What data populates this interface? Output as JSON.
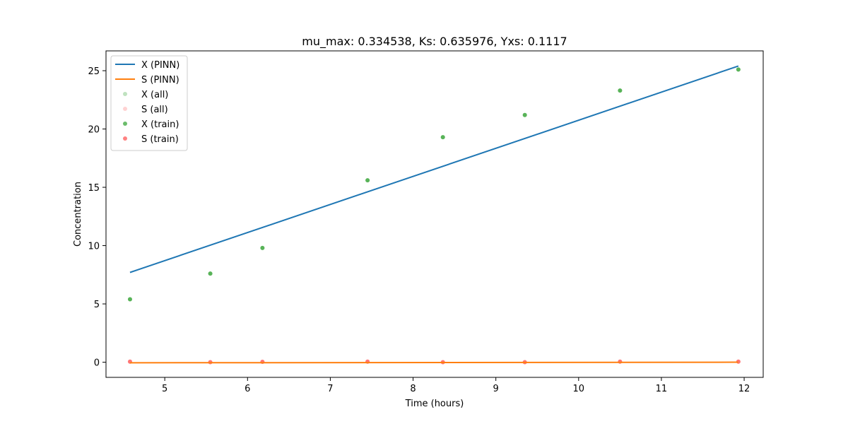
{
  "chart_data": {
    "type": "line",
    "title": "mu_max: 0.334538, Ks: 0.635976, Yxs: 0.1117",
    "xlabel": "Time (hours)",
    "ylabel": "Concentration",
    "xlim": [
      4.29,
      12.23
    ],
    "ylim": [
      -1.3,
      26.7
    ],
    "xticks": [
      "5",
      "6",
      "7",
      "8",
      "9",
      "10",
      "11",
      "12"
    ],
    "yticks": [
      "0",
      "5",
      "10",
      "15",
      "20",
      "25"
    ],
    "grid": false,
    "legend_position": "top-left",
    "series": [
      {
        "name": "X (PINN)",
        "kind": "line",
        "color": "#1f77b4",
        "x": [
          4.58,
          11.93
        ],
        "y": [
          7.7,
          25.4
        ]
      },
      {
        "name": "S (PINN)",
        "kind": "line",
        "color": "#ff7f0e",
        "x": [
          4.58,
          11.93
        ],
        "y": [
          -0.05,
          0.0
        ]
      },
      {
        "name": "X (all)",
        "kind": "scatter",
        "color": "#2ca02c",
        "alpha": 0.3,
        "x": [
          4.58,
          5.55,
          6.18,
          7.45,
          8.36,
          9.35,
          10.5,
          11.93
        ],
        "y": [
          5.4,
          7.6,
          9.8,
          15.6,
          19.3,
          21.2,
          23.3,
          25.1
        ]
      },
      {
        "name": "S (all)",
        "kind": "scatter",
        "color": "#ff6b6b",
        "alpha": 0.3,
        "x": [
          4.58,
          5.55,
          6.18,
          7.45,
          8.36,
          9.35,
          10.5,
          11.93
        ],
        "y": [
          0.05,
          0.0,
          0.03,
          0.05,
          0.0,
          0.0,
          0.05,
          0.05
        ]
      },
      {
        "name": "X (train)",
        "kind": "scatter",
        "color": "#2ca02c",
        "alpha": 0.7,
        "x": [
          4.58,
          5.55,
          6.18,
          7.45,
          8.36,
          9.35,
          10.5,
          11.93
        ],
        "y": [
          5.4,
          7.6,
          9.8,
          15.6,
          19.3,
          21.2,
          23.3,
          25.1
        ]
      },
      {
        "name": "S (train)",
        "kind": "scatter",
        "color": "#ff4d4d",
        "alpha": 0.7,
        "x": [
          4.58,
          5.55,
          6.18,
          7.45,
          8.36,
          9.35,
          10.5,
          11.93
        ],
        "y": [
          0.05,
          0.0,
          0.03,
          0.05,
          0.0,
          0.0,
          0.05,
          0.05
        ]
      }
    ]
  }
}
